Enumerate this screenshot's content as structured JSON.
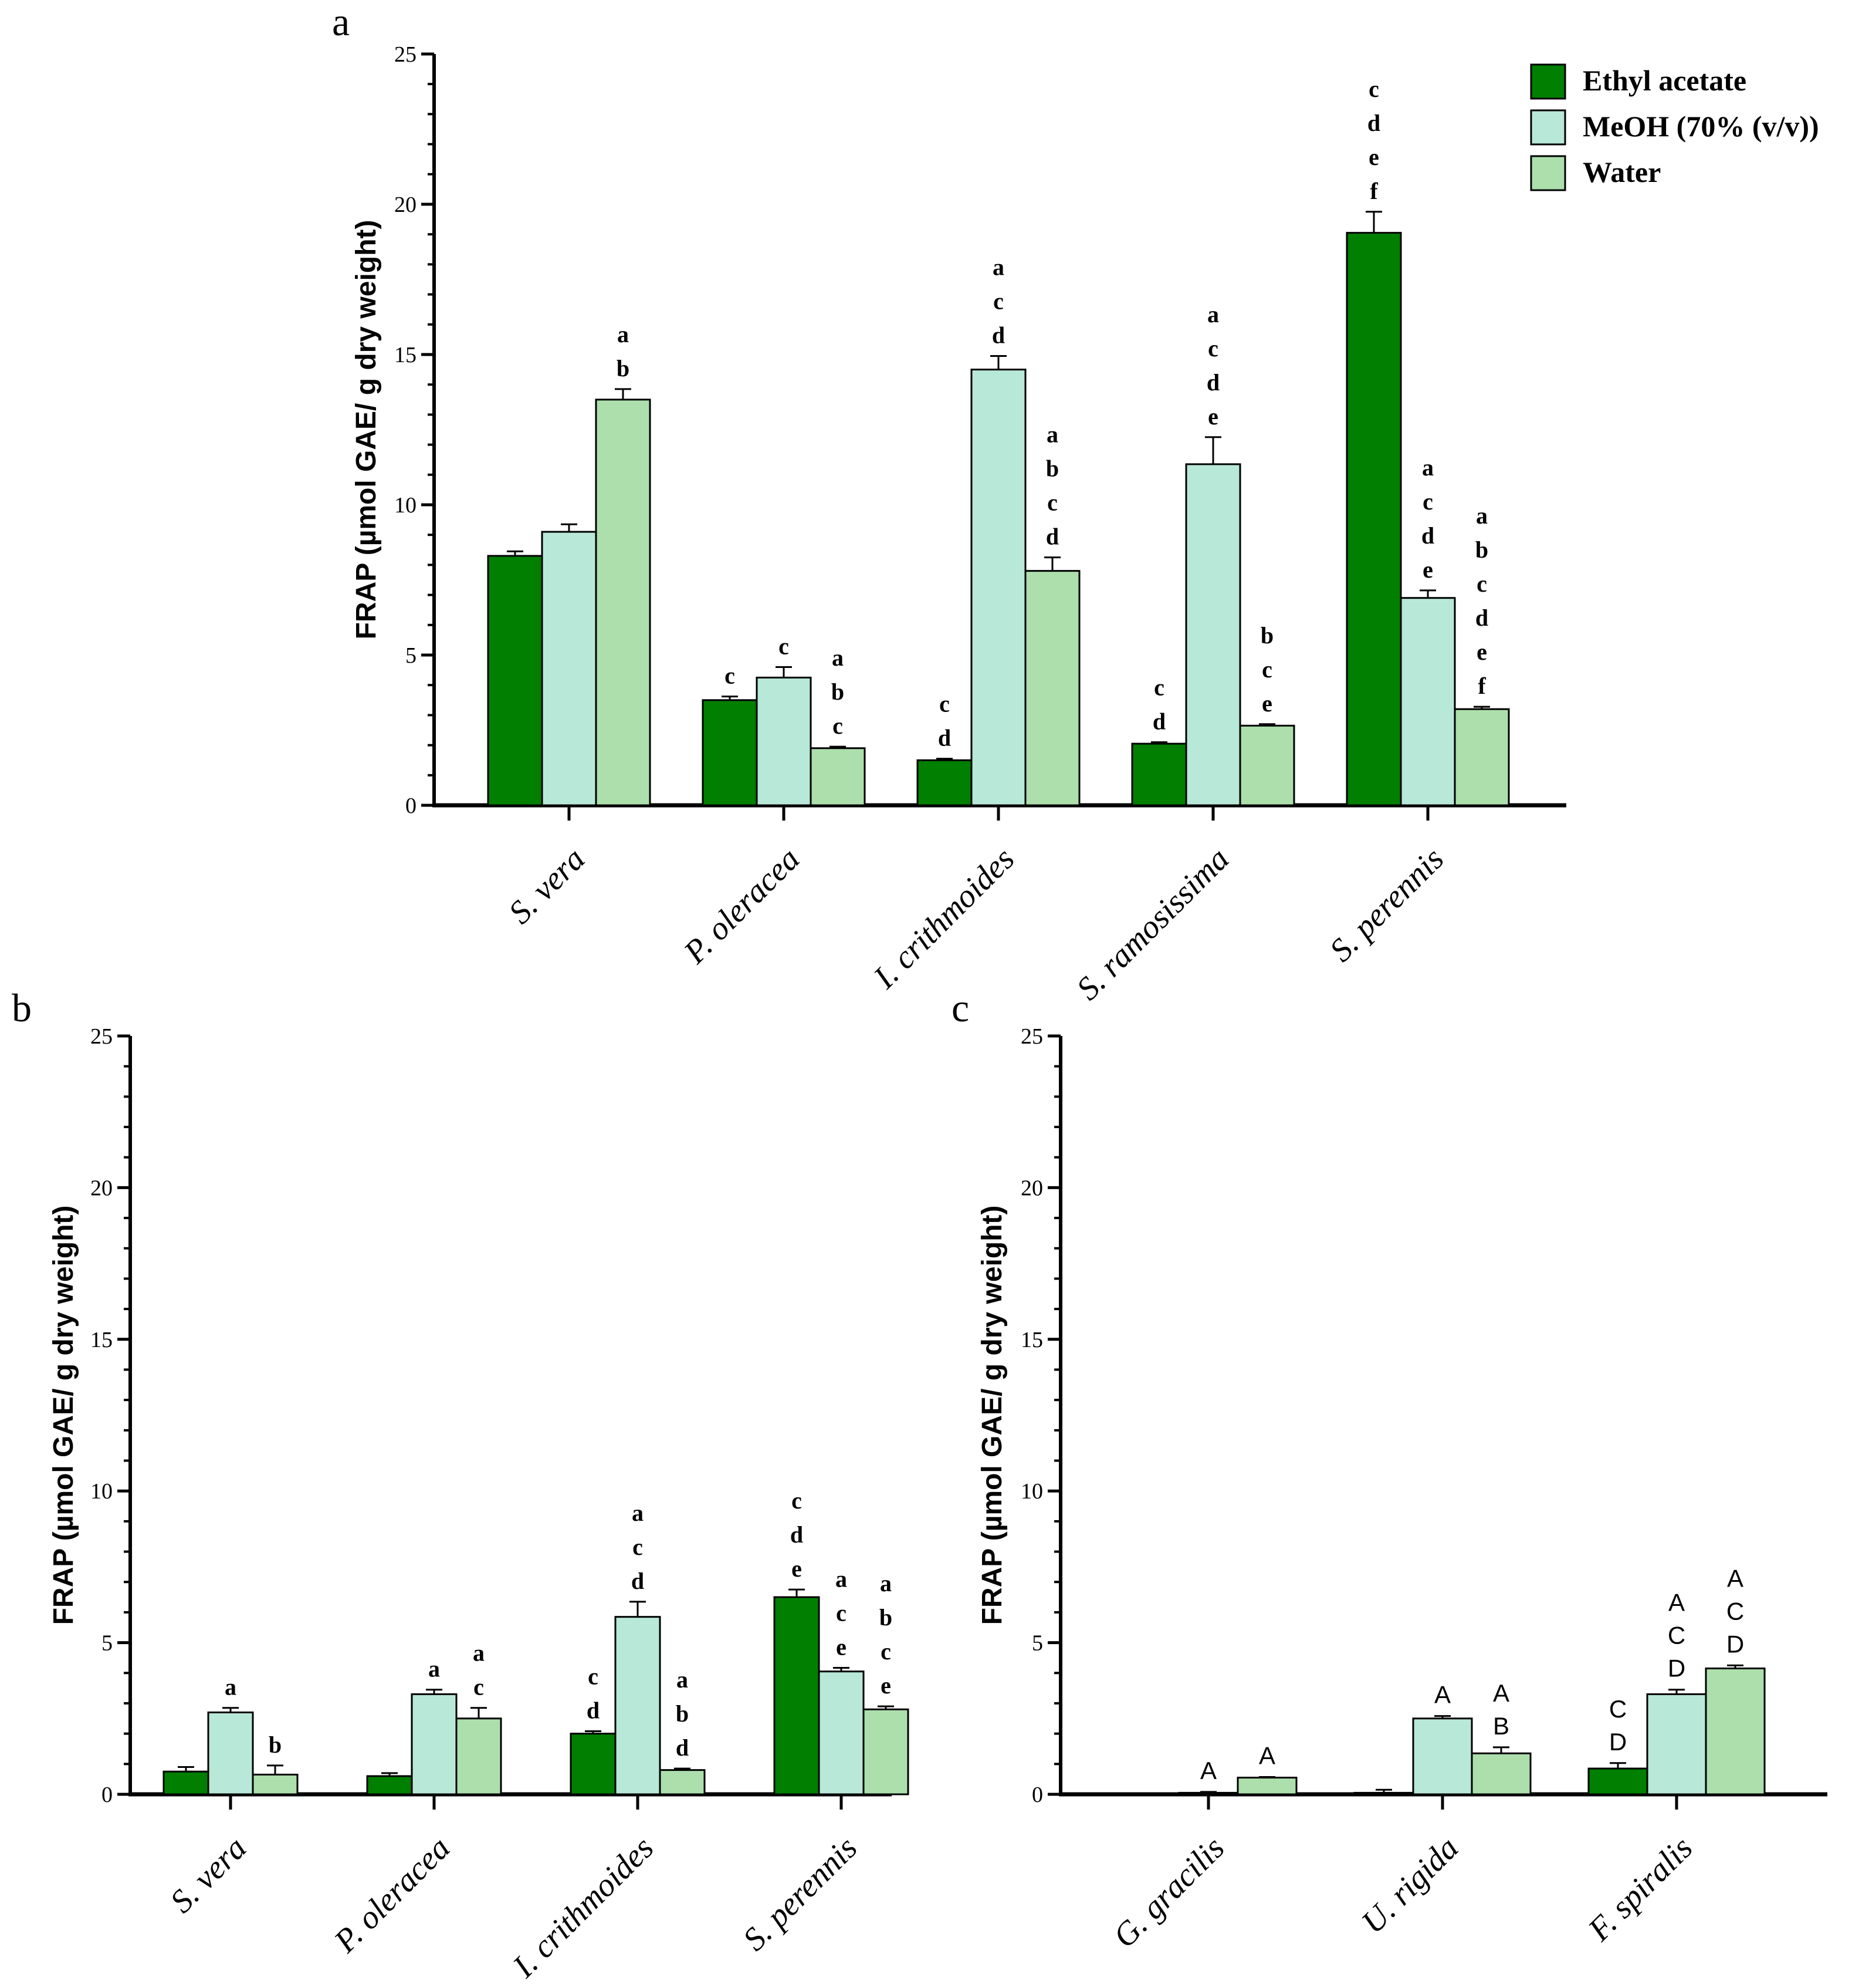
{
  "colors": {
    "ethyl_acetate": "#007f00",
    "meoh": "#b8e8d8",
    "water": "#acdfac",
    "axis": "#000000"
  },
  "legend": {
    "placement": "top-right",
    "items": [
      "Ethyl acetate",
      "MeOH (70% (v/v))",
      "Water"
    ]
  },
  "chart_data": [
    {
      "panel": "a",
      "type": "bar",
      "ylabel": "FRAP (µmol GAE/ g dry weight)",
      "ylim": [
        0,
        25
      ],
      "yticks": [
        "0",
        "5",
        "10",
        "15",
        "20",
        "25"
      ],
      "categories": [
        "S. vera",
        "P. oleracea",
        "I. crithmoides",
        "S. ramosissima",
        "S. perennis"
      ],
      "series": [
        {
          "name": "Ethyl acetate",
          "values": [
            8.3,
            3.5,
            1.5,
            2.05,
            19.05
          ],
          "errors": [
            0.15,
            0.12,
            0.05,
            0.05,
            0.7
          ],
          "sig": [
            "",
            "c",
            "c\nd",
            "c\nd",
            "c\nd\ne\nf"
          ]
        },
        {
          "name": "MeOH (70% (v/v))",
          "values": [
            9.1,
            4.25,
            14.5,
            11.35,
            6.9
          ],
          "errors": [
            0.25,
            0.35,
            0.45,
            0.9,
            0.25
          ],
          "sig": [
            "",
            "c",
            "a\nc\nd",
            "a\nc\nd\ne",
            "a\nc\nd\ne"
          ]
        },
        {
          "name": "Water",
          "values": [
            13.5,
            1.9,
            7.8,
            2.65,
            3.2
          ],
          "errors": [
            0.35,
            0.05,
            0.45,
            0.05,
            0.08
          ],
          "sig": [
            "a\nb",
            "a\nb\nc",
            "a\nb\nc\nd",
            "b\nc\ne",
            "a\nb\nc\nd\ne\nf"
          ]
        }
      ]
    },
    {
      "panel": "b",
      "type": "bar",
      "ylabel": "FRAP (µmol GAE/ g dry weight)",
      "ylim": [
        0,
        25
      ],
      "yticks": [
        "0",
        "5",
        "10",
        "15",
        "20",
        "25"
      ],
      "categories": [
        "S. vera",
        "P. oleracea",
        "I. crithmoides",
        "S. perennis"
      ],
      "series": [
        {
          "name": "Ethyl acetate",
          "values": [
            0.75,
            0.6,
            2.0,
            6.5
          ],
          "errors": [
            0.15,
            0.1,
            0.08,
            0.25
          ],
          "sig": [
            "",
            "",
            "c\nd",
            "c\nd\ne"
          ]
        },
        {
          "name": "MeOH (70% (v/v))",
          "values": [
            2.7,
            3.3,
            5.85,
            4.05
          ],
          "errors": [
            0.15,
            0.15,
            0.5,
            0.12
          ],
          "sig": [
            "a",
            "a",
            "a\nc\nd",
            "a\nc\ne"
          ]
        },
        {
          "name": "Water",
          "values": [
            0.65,
            2.5,
            0.8,
            2.8
          ],
          "errors": [
            0.3,
            0.35,
            0.05,
            0.1
          ],
          "sig": [
            "b",
            "a\nc",
            "a\nb\nd",
            "a\nb\nc\ne"
          ]
        }
      ]
    },
    {
      "panel": "c",
      "type": "bar",
      "ylabel": "FRAP (µmol GAE/ g dry weight)",
      "ylim": [
        0,
        25
      ],
      "yticks": [
        "0",
        "5",
        "10",
        "15",
        "20",
        "25"
      ],
      "categories": [
        "G. gracilis",
        "U. rigida",
        "F. spiralis"
      ],
      "series": [
        {
          "name": "Ethyl acetate",
          "values": [
            0,
            0.05,
            0.85
          ],
          "errors": [
            0,
            0.1,
            0.18
          ],
          "sig": [
            "",
            "",
            "C\nD"
          ]
        },
        {
          "name": "MeOH (70% (v/v))",
          "values": [
            0.05,
            2.5,
            3.3
          ],
          "errors": [
            0.03,
            0.08,
            0.15
          ],
          "sig": [
            "A",
            "A",
            "A\nC\nD"
          ]
        },
        {
          "name": "Water",
          "values": [
            0.55,
            1.35,
            4.15
          ],
          "errors": [
            0.02,
            0.2,
            0.1
          ],
          "sig": [
            "A",
            "A\nB",
            "A\nC\nD"
          ]
        }
      ]
    }
  ]
}
